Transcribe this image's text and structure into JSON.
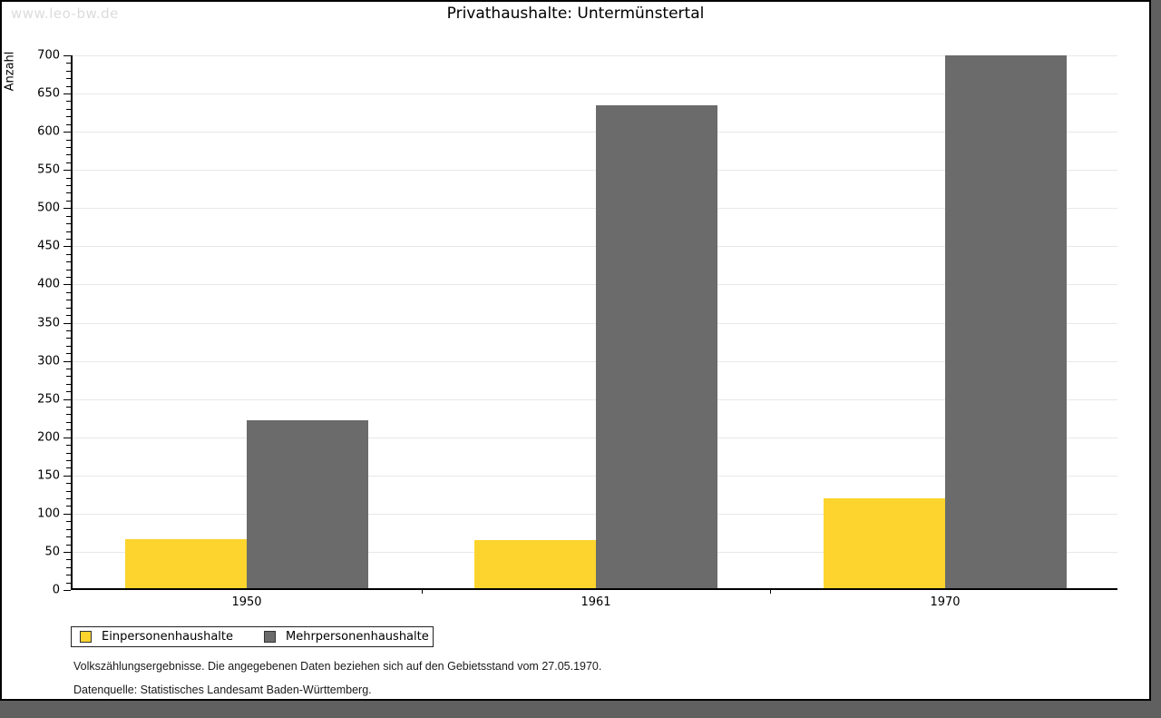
{
  "page": {
    "watermark": "www.leo-bw.de",
    "title": "Privathaushalte: Untermünstertal"
  },
  "chart_data": {
    "type": "bar",
    "title": "Privathaushalte: Untermünstertal",
    "categories": [
      "1950",
      "1961",
      "1970"
    ],
    "series": [
      {
        "name": "Einpersonenhaushalte",
        "color": "#fcd42d",
        "values": [
          64,
          63,
          118
        ]
      },
      {
        "name": "Mehrpersonenhaushalte",
        "color": "#6b6b6b",
        "values": [
          220,
          632,
          698
        ]
      }
    ],
    "xlabel": "",
    "ylabel": "Anzahl",
    "ylim": [
      0,
      700
    ],
    "ytick_step": 50,
    "ytick_minor_step": 10,
    "grid": true,
    "legend_position": "bottom-left"
  },
  "footer": {
    "line1": "Volkszählungsergebnisse. Die angegebenen Daten beziehen sich auf den Gebietsstand vom 27.05.1970.",
    "line2": "Datenquelle: Statistisches Landesamt Baden-Württemberg."
  },
  "colors": {
    "series1": "#fcd42d",
    "series2": "#6b6b6b",
    "gridline": "#e8e8e8",
    "axis": "#000000",
    "watermark": "#dcdcdc",
    "page_background": "#606060",
    "panel_background": "#ffffff"
  }
}
